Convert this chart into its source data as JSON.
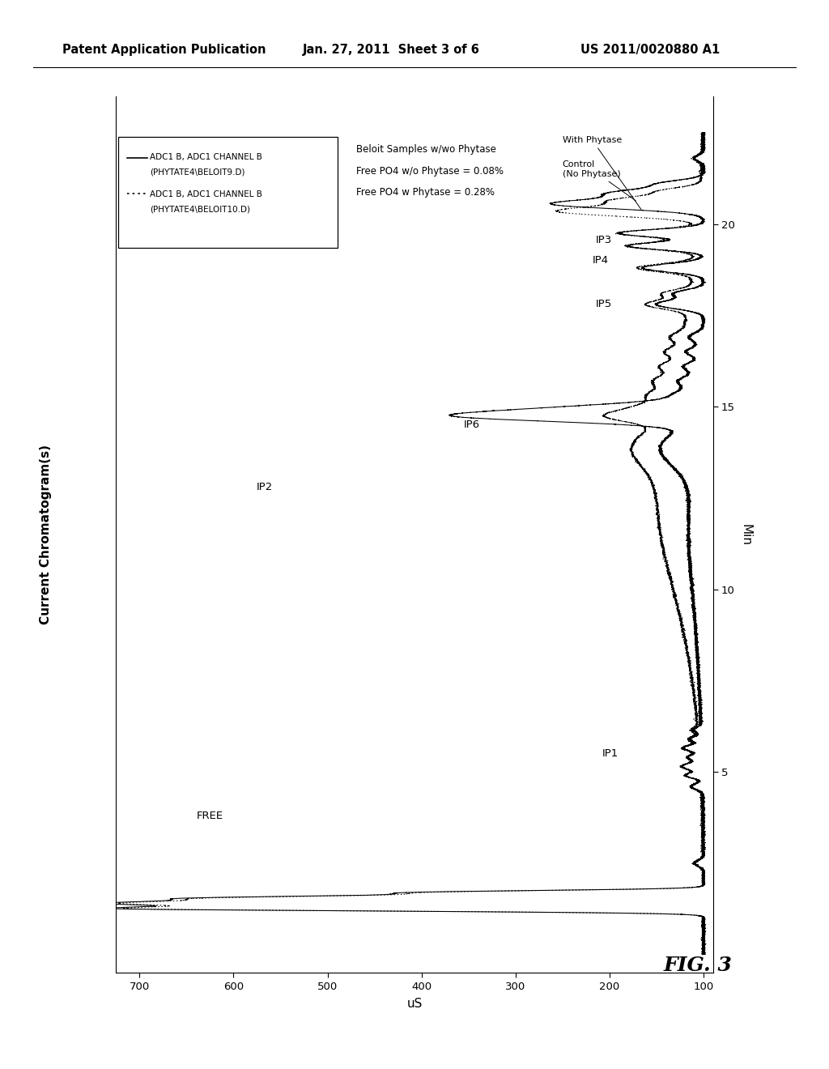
{
  "title_header": "Patent Application Publication",
  "date_header": "Jan. 27, 2011  Sheet 3 of 6",
  "patent_header": "US 2011/0020880 A1",
  "fig_label": "FIG. 3",
  "ylabel_left": "Current Chromatogram(s)",
  "xlabel_bottom": "uS",
  "ylabel_right": "Min",
  "legend_line1a": "— ADC1 B, ADC1 CHANNEL B",
  "legend_line1b": "     (PHYTATE4\\BELOIT9.D)",
  "legend_line2a": "------- ADC1 B, ADC1 CHANNEL B",
  "legend_line2b": "          (PHYTATE4\\BELOIT10.D)",
  "ann_text1": "Beloit Samples w/wo Phytase",
  "ann_text2": "Free PO4 w/o Phytase = 0.08%",
  "ann_text3": "Free PO4 w Phytase = 0.28%",
  "free_label": "FREE",
  "ip1_label": "IP1",
  "ip2_label": "IP2",
  "ip3_label": "IP3",
  "ip4_label": "IP4",
  "ip5_label": "IP5",
  "ip6_label": "IP6",
  "control_label": "Control\n(No Phytase)",
  "withphytase_label": "With Phytase",
  "bg": "#ffffff",
  "lc": "#000000",
  "xticks": [
    700,
    600,
    500,
    400,
    300,
    200,
    100
  ],
  "yticks": [
    5,
    10,
    15,
    20
  ],
  "xlim": [
    725,
    90
  ],
  "ylim": [
    -0.5,
    23.5
  ]
}
